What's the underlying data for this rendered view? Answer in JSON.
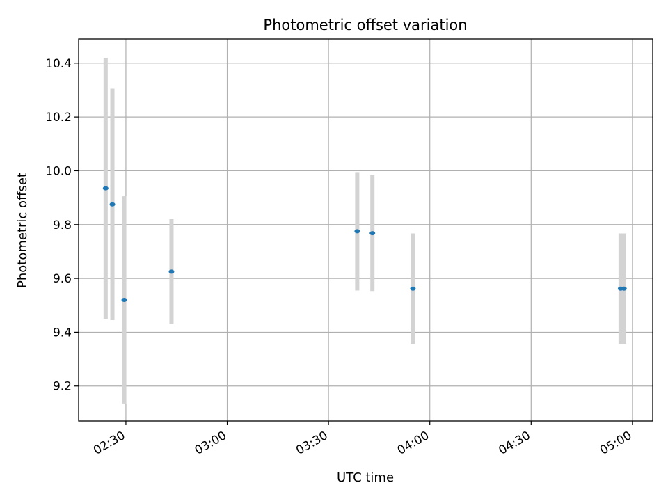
{
  "chart_data": {
    "type": "scatter",
    "title": "Photometric offset variation",
    "xlabel": "UTC time",
    "ylabel": "Photometric offset",
    "x_ticks": [
      "02:30",
      "03:00",
      "03:30",
      "04:00",
      "04:30",
      "05:00"
    ],
    "y_ticks": [
      "9.2",
      "9.4",
      "9.6",
      "9.8",
      "10.0",
      "10.2",
      "10.4"
    ],
    "xlim": [
      "02:16",
      "05:06"
    ],
    "ylim": [
      9.07,
      10.49
    ],
    "grid": true,
    "colors": {
      "points": "#1f77b4",
      "errorbars": "#d3d3d3",
      "grid": "#b0b0b0"
    },
    "points": [
      {
        "x": "02:24",
        "y": 9.935,
        "err": 0.485
      },
      {
        "x": "02:26",
        "y": 9.875,
        "err": 0.43
      },
      {
        "x": "02:29.5",
        "y": 9.52,
        "err": 0.385
      },
      {
        "x": "02:43.5",
        "y": 9.625,
        "err": 0.195
      },
      {
        "x": "03:38.5",
        "y": 9.775,
        "err": 0.22
      },
      {
        "x": "03:43",
        "y": 9.768,
        "err": 0.215
      },
      {
        "x": "03:55",
        "y": 9.562,
        "err": 0.205
      },
      {
        "x": "04:56.5",
        "y": 9.562,
        "err": 0.205
      },
      {
        "x": "04:57.5",
        "y": 9.562,
        "err": 0.205
      }
    ]
  }
}
